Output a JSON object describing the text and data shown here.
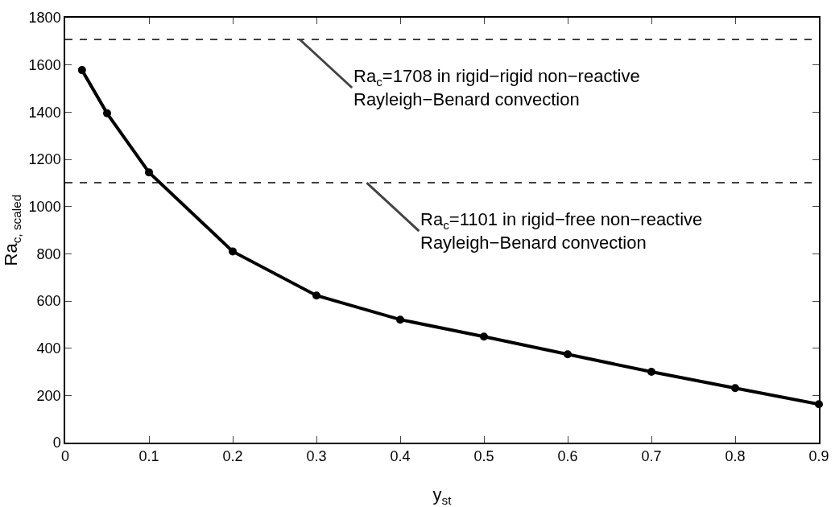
{
  "chart_data": {
    "type": "line",
    "xlabel": "y$_{st}$",
    "ylabel": "Ra$_{c, scaled}$",
    "x": [
      0.02,
      0.05,
      0.1,
      0.2,
      0.3,
      0.4,
      0.5,
      0.6,
      0.7,
      0.8,
      0.9
    ],
    "series": [
      {
        "color": "#000000",
        "values": [
          1578,
          1395,
          1145,
          810,
          623,
          521,
          449,
          374,
          300,
          231,
          163
        ]
      }
    ],
    "marker": "circle",
    "line_style": "solid",
    "grid": false,
    "xlim": [
      0,
      0.9
    ],
    "xticks": [
      0,
      0.1,
      0.2,
      0.3,
      0.4,
      0.5,
      0.6,
      0.7,
      0.8,
      0.9
    ],
    "ylim": [
      0,
      1800
    ],
    "yticks": [
      0,
      200,
      400,
      600,
      800,
      1000,
      1200,
      1400,
      1600,
      1800
    ],
    "ref_lines": [
      {
        "axis": "y",
        "value": 1708,
        "line_style": "dashed",
        "color": "#000000"
      },
      {
        "axis": "y",
        "value": 1101,
        "line_style": "dashed",
        "color": "#000000"
      }
    ],
    "annotations": [
      {
        "text": "Ra$_{c}$=1708 in rigid−rigid non−reactive\nRayleigh−Benard convection",
        "x": 0.28,
        "y": 1708
      },
      {
        "text": "Ra$_{c}$=1101 in rigid−free non−reactive\nRayleigh−Benard convection",
        "x": 0.36,
        "y": 1101
      }
    ]
  }
}
